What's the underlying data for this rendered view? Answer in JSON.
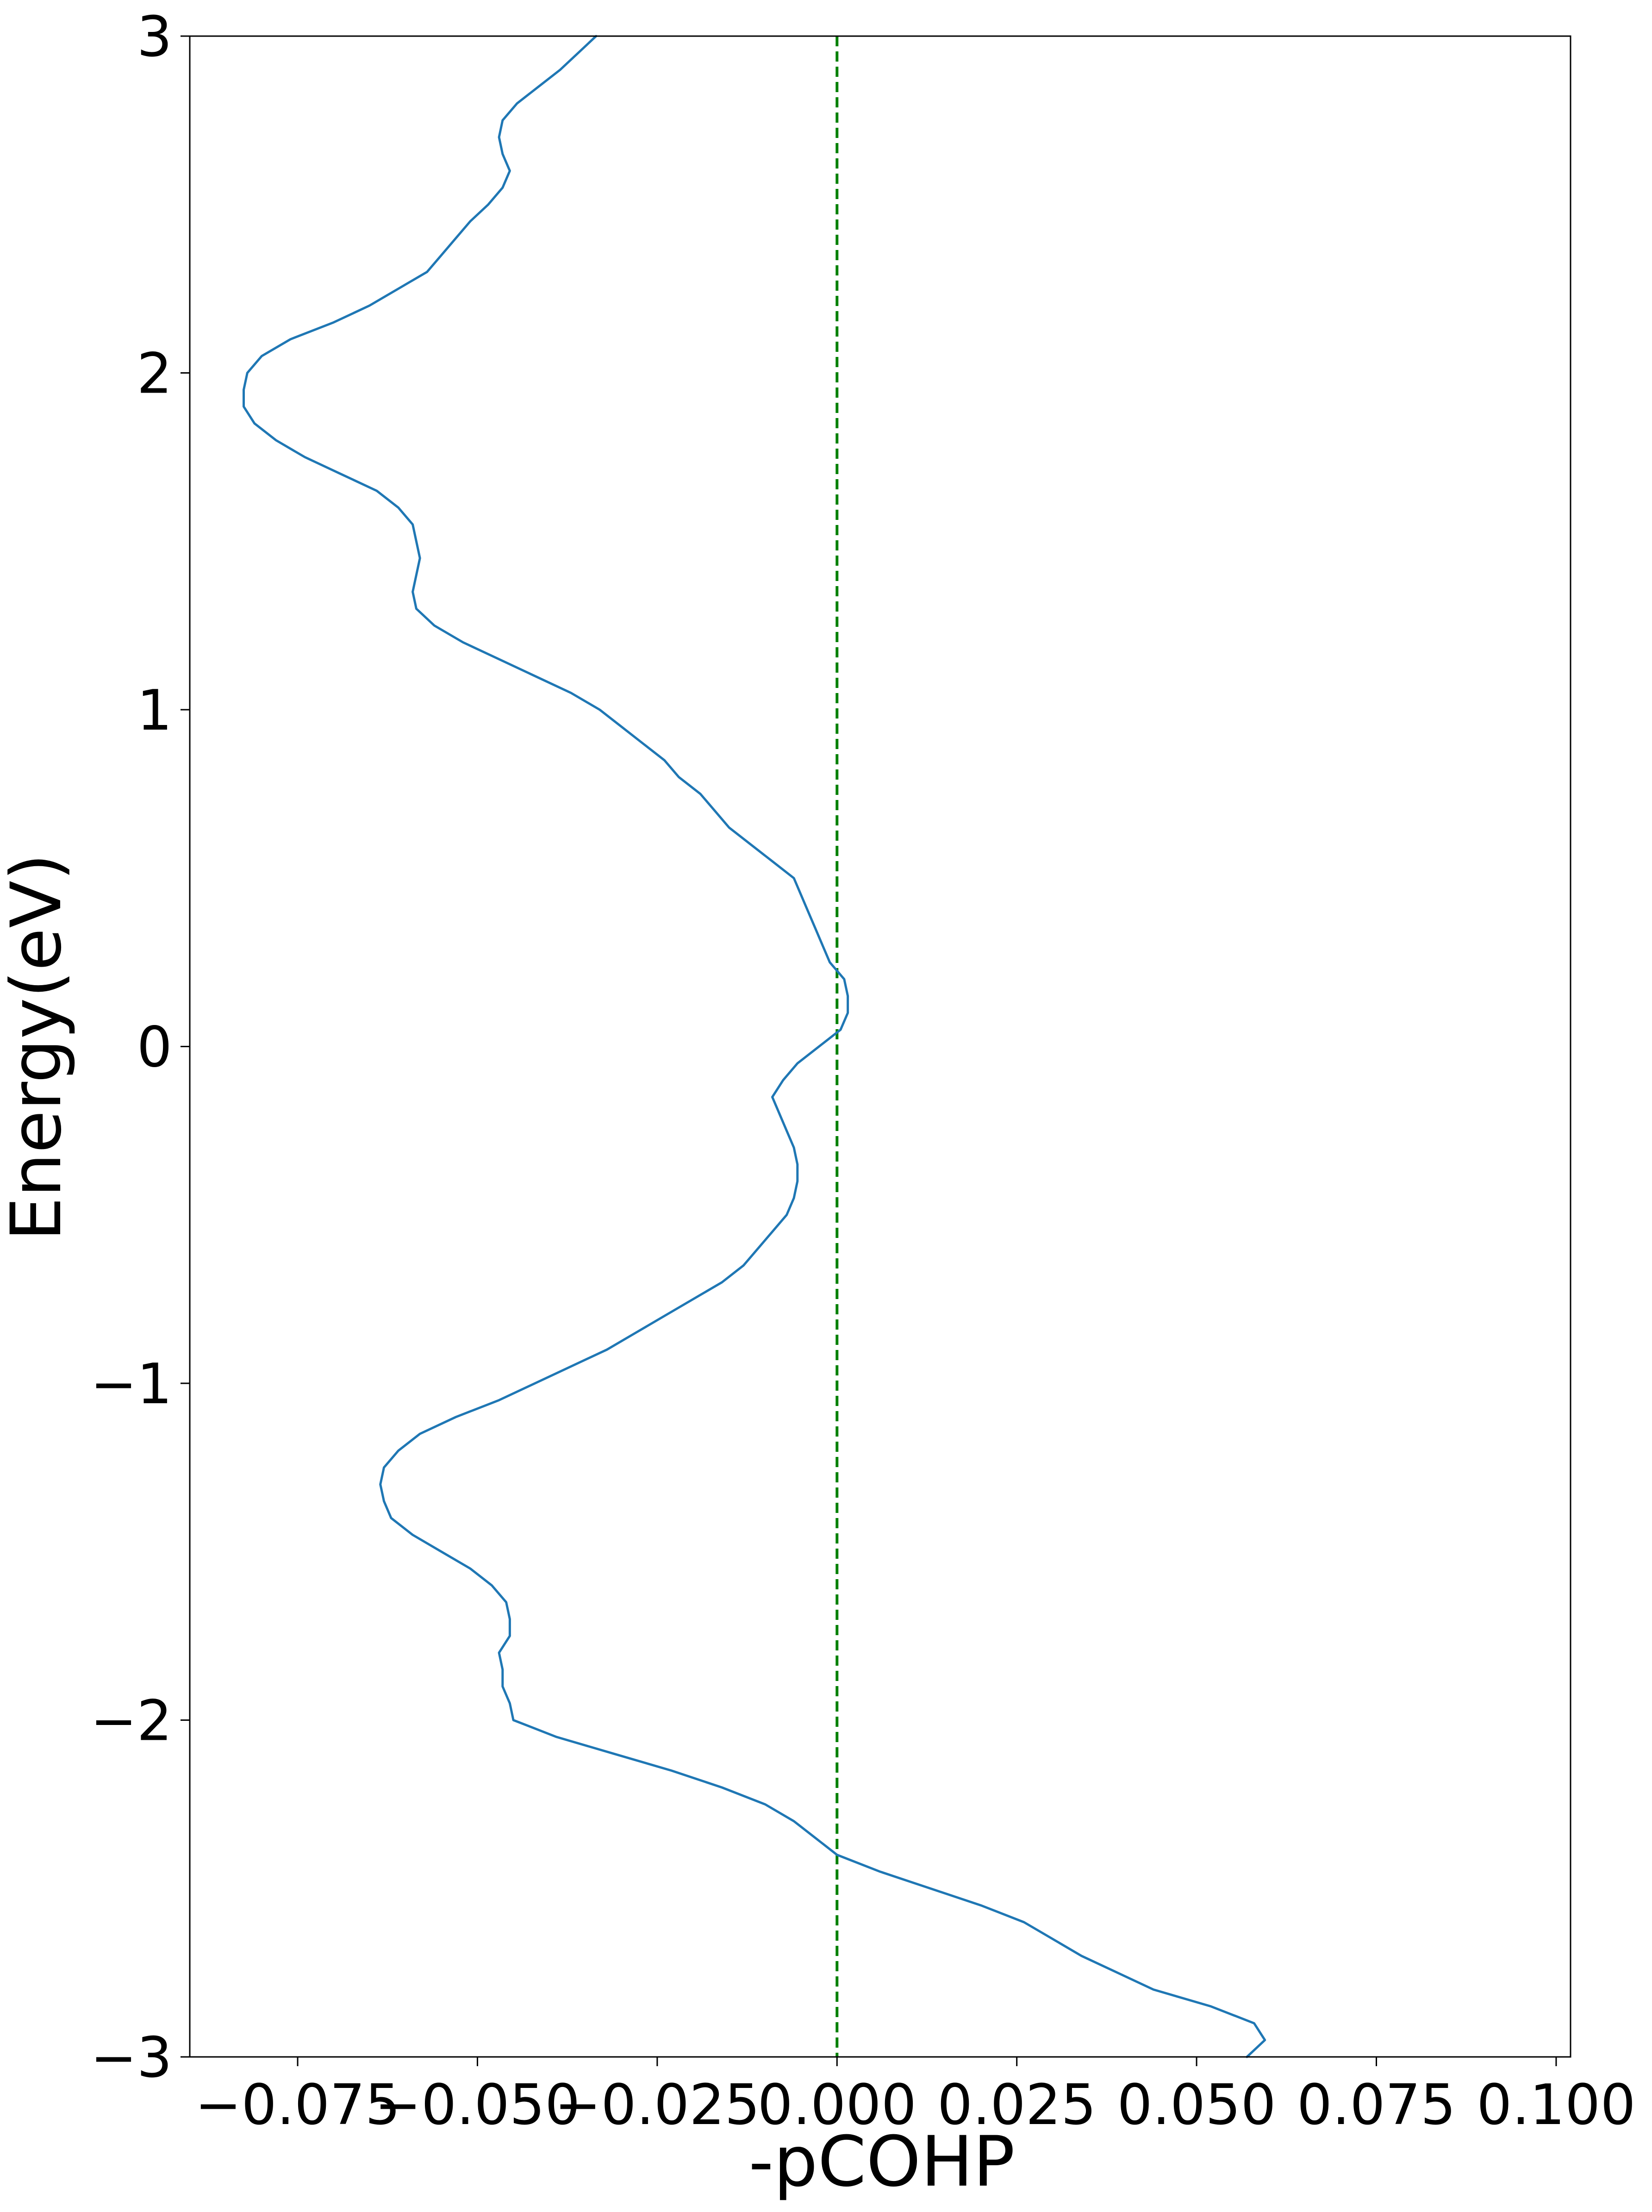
{
  "chart_data": {
    "type": "line",
    "title": "",
    "xlabel": "-pCOHP",
    "ylabel": "Energy(eV)",
    "xlim": [
      -0.09,
      0.102
    ],
    "ylim": [
      -3,
      3
    ],
    "x_ticks": [
      -0.075,
      -0.05,
      -0.025,
      0.0,
      0.025,
      0.05,
      0.075,
      0.1
    ],
    "x_tick_labels": [
      "−0.075",
      "−0.050",
      "−0.025",
      "0.000",
      "0.025",
      "0.050",
      "0.075",
      "0.100"
    ],
    "y_ticks": [
      -3,
      -2,
      -1,
      0,
      1,
      2,
      3
    ],
    "y_tick_labels": [
      "−3",
      "−2",
      "−1",
      "0",
      "1",
      "2",
      "3"
    ],
    "grid": false,
    "legend": "none",
    "reference_line": {
      "x": 0.0,
      "style": "dashed",
      "color": "#008000"
    },
    "series": [
      {
        "color": "#1f77b4",
        "points": [
          [
            0.057,
            -3.0
          ],
          [
            0.0595,
            -2.95
          ],
          [
            0.058,
            -2.9
          ],
          [
            0.052,
            -2.85
          ],
          [
            0.044,
            -2.8
          ],
          [
            0.039,
            -2.75
          ],
          [
            0.034,
            -2.7
          ],
          [
            0.03,
            -2.65
          ],
          [
            0.026,
            -2.6
          ],
          [
            0.02,
            -2.55
          ],
          [
            0.013,
            -2.5
          ],
          [
            0.006,
            -2.45
          ],
          [
            0.0,
            -2.4
          ],
          [
            -0.003,
            -2.35
          ],
          [
            -0.006,
            -2.3
          ],
          [
            -0.01,
            -2.25
          ],
          [
            -0.016,
            -2.2
          ],
          [
            -0.023,
            -2.15
          ],
          [
            -0.031,
            -2.1
          ],
          [
            -0.039,
            -2.05
          ],
          [
            -0.045,
            -2.0
          ],
          [
            -0.0455,
            -1.95
          ],
          [
            -0.0465,
            -1.9
          ],
          [
            -0.0465,
            -1.85
          ],
          [
            -0.047,
            -1.8
          ],
          [
            -0.0455,
            -1.75
          ],
          [
            -0.0455,
            -1.7
          ],
          [
            -0.046,
            -1.65
          ],
          [
            -0.048,
            -1.6
          ],
          [
            -0.051,
            -1.55
          ],
          [
            -0.055,
            -1.5
          ],
          [
            -0.059,
            -1.45
          ],
          [
            -0.062,
            -1.4
          ],
          [
            -0.063,
            -1.35
          ],
          [
            -0.0635,
            -1.3
          ],
          [
            -0.063,
            -1.25
          ],
          [
            -0.061,
            -1.2
          ],
          [
            -0.058,
            -1.15
          ],
          [
            -0.053,
            -1.1
          ],
          [
            -0.047,
            -1.05
          ],
          [
            -0.042,
            -1.0
          ],
          [
            -0.037,
            -0.95
          ],
          [
            -0.032,
            -0.9
          ],
          [
            -0.028,
            -0.85
          ],
          [
            -0.024,
            -0.8
          ],
          [
            -0.02,
            -0.75
          ],
          [
            -0.016,
            -0.7
          ],
          [
            -0.013,
            -0.65
          ],
          [
            -0.011,
            -0.6
          ],
          [
            -0.009,
            -0.55
          ],
          [
            -0.007,
            -0.5
          ],
          [
            -0.006,
            -0.45
          ],
          [
            -0.0055,
            -0.4
          ],
          [
            -0.0055,
            -0.35
          ],
          [
            -0.006,
            -0.3
          ],
          [
            -0.007,
            -0.25
          ],
          [
            -0.008,
            -0.2
          ],
          [
            -0.009,
            -0.15
          ],
          [
            -0.0075,
            -0.1
          ],
          [
            -0.0055,
            -0.05
          ],
          [
            -0.0025,
            0.0
          ],
          [
            0.0005,
            0.05
          ],
          [
            0.0015,
            0.1
          ],
          [
            0.0015,
            0.15
          ],
          [
            0.001,
            0.2
          ],
          [
            -0.001,
            0.25
          ],
          [
            -0.002,
            0.3
          ],
          [
            -0.003,
            0.35
          ],
          [
            -0.004,
            0.4
          ],
          [
            -0.005,
            0.45
          ],
          [
            -0.006,
            0.5
          ],
          [
            -0.009,
            0.55
          ],
          [
            -0.012,
            0.6
          ],
          [
            -0.015,
            0.65
          ],
          [
            -0.017,
            0.7
          ],
          [
            -0.019,
            0.75
          ],
          [
            -0.022,
            0.8
          ],
          [
            -0.024,
            0.85
          ],
          [
            -0.027,
            0.9
          ],
          [
            -0.03,
            0.95
          ],
          [
            -0.033,
            1.0
          ],
          [
            -0.037,
            1.05
          ],
          [
            -0.042,
            1.1
          ],
          [
            -0.047,
            1.15
          ],
          [
            -0.052,
            1.2
          ],
          [
            -0.056,
            1.25
          ],
          [
            -0.0585,
            1.3
          ],
          [
            -0.059,
            1.35
          ],
          [
            -0.0585,
            1.4
          ],
          [
            -0.058,
            1.45
          ],
          [
            -0.0585,
            1.5
          ],
          [
            -0.059,
            1.55
          ],
          [
            -0.061,
            1.6
          ],
          [
            -0.064,
            1.65
          ],
          [
            -0.069,
            1.7
          ],
          [
            -0.074,
            1.75
          ],
          [
            -0.078,
            1.8
          ],
          [
            -0.081,
            1.85
          ],
          [
            -0.0825,
            1.9
          ],
          [
            -0.0825,
            1.95
          ],
          [
            -0.082,
            2.0
          ],
          [
            -0.08,
            2.05
          ],
          [
            -0.076,
            2.1
          ],
          [
            -0.07,
            2.15
          ],
          [
            -0.065,
            2.2
          ],
          [
            -0.061,
            2.25
          ],
          [
            -0.057,
            2.3
          ],
          [
            -0.055,
            2.35
          ],
          [
            -0.053,
            2.4
          ],
          [
            -0.051,
            2.45
          ],
          [
            -0.0485,
            2.5
          ],
          [
            -0.0465,
            2.55
          ],
          [
            -0.0455,
            2.6
          ],
          [
            -0.0465,
            2.65
          ],
          [
            -0.047,
            2.7
          ],
          [
            -0.0465,
            2.75
          ],
          [
            -0.0445,
            2.8
          ],
          [
            -0.0415,
            2.85
          ],
          [
            -0.0385,
            2.9
          ],
          [
            -0.036,
            2.95
          ],
          [
            -0.0335,
            3.0
          ]
        ]
      }
    ]
  }
}
